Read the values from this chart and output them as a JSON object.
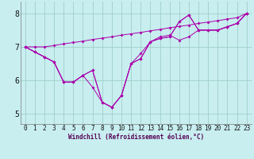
{
  "xlabel": "Windchill (Refroidissement éolien,°C)",
  "xlim": [
    -0.5,
    23.5
  ],
  "ylim": [
    4.7,
    8.35
  ],
  "xticks": [
    0,
    1,
    2,
    3,
    4,
    5,
    6,
    7,
    8,
    9,
    10,
    11,
    12,
    13,
    14,
    15,
    16,
    17,
    18,
    19,
    20,
    21,
    22,
    23
  ],
  "yticks": [
    5,
    6,
    7,
    8
  ],
  "background_color": "#c8eef0",
  "grid_color": "#a0cfc8",
  "line_color": "#aa00aa",
  "lines": [
    [
      7.0,
      6.85,
      6.7,
      6.55,
      5.95,
      5.95,
      6.15,
      5.8,
      5.35,
      5.2,
      5.55,
      6.5,
      6.65,
      7.15,
      7.25,
      7.3,
      7.75,
      7.95,
      7.5,
      7.5,
      7.5,
      7.6,
      7.7,
      8.0
    ],
    [
      7.0,
      6.85,
      6.7,
      6.55,
      5.95,
      5.95,
      6.15,
      6.3,
      5.35,
      5.2,
      5.55,
      6.5,
      6.8,
      7.15,
      7.3,
      7.35,
      7.2,
      7.3,
      7.5,
      7.5,
      7.5,
      7.6,
      7.7,
      8.0
    ],
    [
      7.0,
      6.85,
      6.7,
      6.55,
      5.95,
      5.95,
      6.15,
      6.3,
      5.35,
      5.2,
      5.55,
      6.5,
      6.65,
      7.15,
      7.25,
      7.3,
      7.75,
      7.95,
      7.5,
      7.5,
      7.5,
      7.6,
      7.7,
      8.0
    ],
    [
      7.0,
      7.0,
      7.0,
      7.04,
      7.09,
      7.13,
      7.17,
      7.22,
      7.26,
      7.3,
      7.35,
      7.39,
      7.43,
      7.48,
      7.52,
      7.57,
      7.61,
      7.65,
      7.7,
      7.74,
      7.78,
      7.83,
      7.87,
      8.0
    ]
  ]
}
